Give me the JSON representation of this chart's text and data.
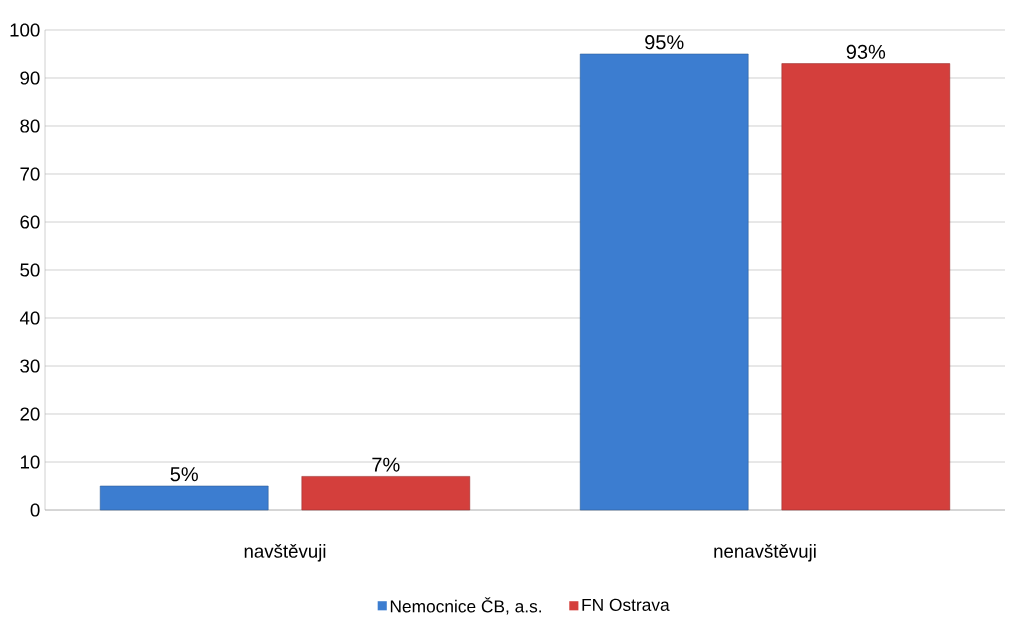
{
  "chart_data": {
    "type": "bar",
    "categories": [
      "navštěvuji",
      "nenavštěvuji"
    ],
    "series": [
      {
        "name": "Nemocnice ČB, a.s.",
        "color": "#3c7dd0",
        "values": [
          5,
          95
        ],
        "value_labels": [
          "5%",
          "95%"
        ]
      },
      {
        "name": "FN Ostrava",
        "color": "#d43f3c",
        "values": [
          7,
          93
        ],
        "value_labels": [
          "7%",
          "93%"
        ]
      }
    ],
    "ylim": [
      0,
      100
    ],
    "yticks": [
      0,
      10,
      20,
      30,
      40,
      50,
      60,
      70,
      80,
      90,
      100
    ],
    "grid": "y",
    "legend": "bottom"
  }
}
